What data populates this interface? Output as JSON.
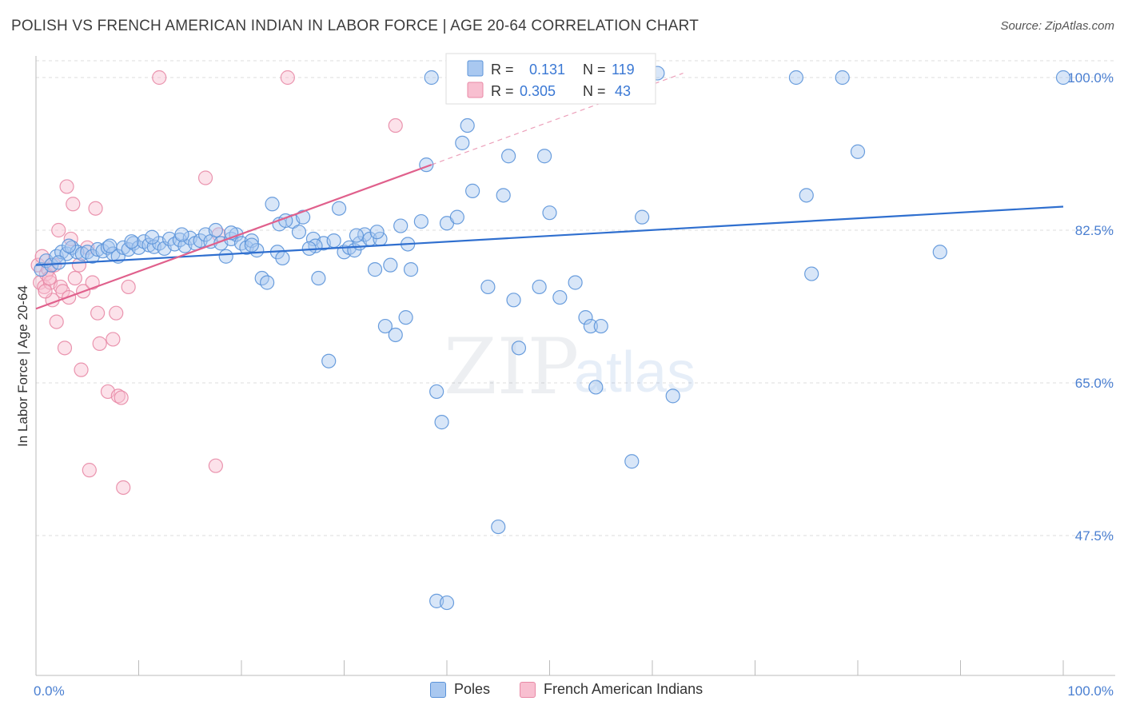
{
  "title": "POLISH VS FRENCH AMERICAN INDIAN IN LABOR FORCE | AGE 20-64 CORRELATION CHART",
  "source": "Source: ZipAtlas.com",
  "watermark": {
    "zip": "ZIP",
    "atlas": "atlas"
  },
  "colors": {
    "poles_fill": "#a9c8f0",
    "poles_stroke": "#5b93d9",
    "poles_line": "#2f6fcf",
    "french_fill": "#f8bfd0",
    "french_stroke": "#e889a6",
    "french_line": "#e0608c",
    "tick_text": "#4a7fd1",
    "grid": "#dddddd"
  },
  "legend_top": {
    "rows": [
      {
        "r_label": "R =",
        "r_value": "0.131",
        "n_label": "N =",
        "n_value": "119"
      },
      {
        "r_label": "R =",
        "r_value": "0.305",
        "n_label": "N =",
        "n_value": "43"
      }
    ]
  },
  "legend_bottom": {
    "poles": "Poles",
    "french": "French American Indians"
  },
  "chart_data": {
    "type": "scatter",
    "title": "POLISH VS FRENCH AMERICAN INDIAN IN LABOR FORCE | AGE 20-64 CORRELATION CHART",
    "xlabel": "",
    "ylabel": "In Labor Force | Age 20-64",
    "xlim": [
      0,
      100
    ],
    "ylim": [
      30.0,
      102.0
    ],
    "x_tick_labels": [
      "0.0%",
      "100.0%"
    ],
    "y_ticks": [
      47.5,
      65.0,
      82.5,
      100.0
    ],
    "y_tick_labels": [
      "47.5%",
      "65.0%",
      "82.5%",
      "100.0%"
    ],
    "grid": true,
    "legend_position": "top-center",
    "series": [
      {
        "name": "Poles",
        "r": 0.131,
        "n": 119,
        "trend": {
          "x": [
            0,
            100
          ],
          "y": [
            78.5,
            85.2
          ]
        },
        "points": [
          [
            0.5,
            78.0
          ],
          [
            1.0,
            79.0
          ],
          [
            1.5,
            78.5
          ],
          [
            2.0,
            79.5
          ],
          [
            2.5,
            80.0
          ],
          [
            3.0,
            79.8
          ],
          [
            3.5,
            80.5
          ],
          [
            4.0,
            80.0
          ],
          [
            4.5,
            79.8
          ],
          [
            5.0,
            80.0
          ],
          [
            5.5,
            79.5
          ],
          [
            6.0,
            80.3
          ],
          [
            6.5,
            80.1
          ],
          [
            7.0,
            80.5
          ],
          [
            7.5,
            79.8
          ],
          [
            8.0,
            79.5
          ],
          [
            8.5,
            80.5
          ],
          [
            9.0,
            80.3
          ],
          [
            9.5,
            81.0
          ],
          [
            10.0,
            80.5
          ],
          [
            10.5,
            81.2
          ],
          [
            11.0,
            80.8
          ],
          [
            11.5,
            80.6
          ],
          [
            12.0,
            81.0
          ],
          [
            12.5,
            80.4
          ],
          [
            13.0,
            81.5
          ],
          [
            13.5,
            80.9
          ],
          [
            14.0,
            81.4
          ],
          [
            14.5,
            80.7
          ],
          [
            15.0,
            81.6
          ],
          [
            15.5,
            81.0
          ],
          [
            16.0,
            81.3
          ],
          [
            16.5,
            82.0
          ],
          [
            17.0,
            81.2
          ],
          [
            17.5,
            82.5
          ],
          [
            18.0,
            81.0
          ],
          [
            18.5,
            79.5
          ],
          [
            19.0,
            81.5
          ],
          [
            19.5,
            82.0
          ],
          [
            20.0,
            81.0
          ],
          [
            20.5,
            80.5
          ],
          [
            21.0,
            81.3
          ],
          [
            21.5,
            80.2
          ],
          [
            22.0,
            77.0
          ],
          [
            22.5,
            76.5
          ],
          [
            23.0,
            85.5
          ],
          [
            23.5,
            80.0
          ],
          [
            24.0,
            79.3
          ],
          [
            25.0,
            83.5
          ],
          [
            26.0,
            84.0
          ],
          [
            27.0,
            81.5
          ],
          [
            27.5,
            77.0
          ],
          [
            28.0,
            81.0
          ],
          [
            28.5,
            67.5
          ],
          [
            29.0,
            81.3
          ],
          [
            29.5,
            85.0
          ],
          [
            30.0,
            80.0
          ],
          [
            30.5,
            80.5
          ],
          [
            31.0,
            80.2
          ],
          [
            31.5,
            81.0
          ],
          [
            32.0,
            82.0
          ],
          [
            32.5,
            81.5
          ],
          [
            33.0,
            78.0
          ],
          [
            33.5,
            81.5
          ],
          [
            34.0,
            71.5
          ],
          [
            34.5,
            78.5
          ],
          [
            35.0,
            70.5
          ],
          [
            35.5,
            83.0
          ],
          [
            36.0,
            72.5
          ],
          [
            36.5,
            78.0
          ],
          [
            37.5,
            83.5
          ],
          [
            38.0,
            90.0
          ],
          [
            38.5,
            100.0
          ],
          [
            39.0,
            64.0
          ],
          [
            39.5,
            60.5
          ],
          [
            40.0,
            83.3
          ],
          [
            41.0,
            84.0
          ],
          [
            41.5,
            92.5
          ],
          [
            42.0,
            94.5
          ],
          [
            42.5,
            87.0
          ],
          [
            43.0,
            99.5
          ],
          [
            44.0,
            76.0
          ],
          [
            45.0,
            48.5
          ],
          [
            45.5,
            86.5
          ],
          [
            46.0,
            91.0
          ],
          [
            46.5,
            74.5
          ],
          [
            47.0,
            69.0
          ],
          [
            48.0,
            100.0
          ],
          [
            49.0,
            76.0
          ],
          [
            49.5,
            91.0
          ],
          [
            50.0,
            84.5
          ],
          [
            51.0,
            74.8
          ],
          [
            52.0,
            99.5
          ],
          [
            52.5,
            76.5
          ],
          [
            53.5,
            72.5
          ],
          [
            54.0,
            71.5
          ],
          [
            54.5,
            64.5
          ],
          [
            55.0,
            71.5
          ],
          [
            58.0,
            56.0
          ],
          [
            59.0,
            84.0
          ],
          [
            60.5,
            100.5
          ],
          [
            62.0,
            63.5
          ],
          [
            74.0,
            100.0
          ],
          [
            75.0,
            86.5
          ],
          [
            75.5,
            77.5
          ],
          [
            78.5,
            100.0
          ],
          [
            80.0,
            91.5
          ],
          [
            88.0,
            80.0
          ],
          [
            100.0,
            100.0
          ],
          [
            39.0,
            40.0
          ],
          [
            40.0,
            39.8
          ],
          [
            23.7,
            83.2
          ],
          [
            24.3,
            83.6
          ],
          [
            27.2,
            80.7
          ],
          [
            31.2,
            81.9
          ],
          [
            33.2,
            82.3
          ],
          [
            36.2,
            80.9
          ],
          [
            14.2,
            82.0
          ],
          [
            2.2,
            78.8
          ],
          [
            3.2,
            80.7
          ],
          [
            19.0,
            82.2
          ],
          [
            21.0,
            80.8
          ],
          [
            25.6,
            82.3
          ],
          [
            26.6,
            80.4
          ],
          [
            7.2,
            80.7
          ],
          [
            9.3,
            81.2
          ],
          [
            11.3,
            81.7
          ]
        ]
      },
      {
        "name": "French American Indians",
        "r": 0.305,
        "n": 43,
        "trend": {
          "x": [
            0,
            38.5
          ],
          "y": [
            73.5,
            90.0
          ]
        },
        "trend_ext": {
          "x": [
            38.5,
            63
          ],
          "y": [
            90.0,
            100.5
          ]
        },
        "points": [
          [
            0.2,
            78.5
          ],
          [
            0.4,
            76.5
          ],
          [
            0.6,
            79.5
          ],
          [
            0.8,
            76.0
          ],
          [
            1.0,
            77.5
          ],
          [
            1.2,
            78.0
          ],
          [
            1.4,
            76.5
          ],
          [
            1.6,
            74.5
          ],
          [
            1.8,
            78.5
          ],
          [
            2.0,
            72.0
          ],
          [
            2.2,
            82.5
          ],
          [
            2.4,
            76.0
          ],
          [
            2.6,
            75.5
          ],
          [
            2.8,
            69.0
          ],
          [
            3.0,
            87.5
          ],
          [
            3.2,
            74.8
          ],
          [
            3.4,
            81.5
          ],
          [
            3.6,
            85.5
          ],
          [
            3.8,
            77.0
          ],
          [
            4.2,
            78.5
          ],
          [
            4.4,
            66.5
          ],
          [
            4.6,
            75.5
          ],
          [
            5.0,
            80.5
          ],
          [
            5.2,
            55.0
          ],
          [
            5.5,
            76.5
          ],
          [
            5.8,
            85.0
          ],
          [
            6.0,
            73.0
          ],
          [
            6.2,
            69.5
          ],
          [
            7.0,
            64.0
          ],
          [
            7.5,
            70.0
          ],
          [
            7.8,
            73.0
          ],
          [
            8.0,
            63.5
          ],
          [
            8.3,
            63.3
          ],
          [
            8.5,
            53.0
          ],
          [
            9.0,
            76.0
          ],
          [
            12.0,
            100.0
          ],
          [
            16.5,
            88.5
          ],
          [
            17.5,
            55.5
          ],
          [
            17.8,
            82.0
          ],
          [
            24.5,
            100.0
          ],
          [
            35.0,
            94.5
          ],
          [
            0.9,
            75.5
          ],
          [
            1.3,
            77.0
          ]
        ]
      }
    ]
  }
}
